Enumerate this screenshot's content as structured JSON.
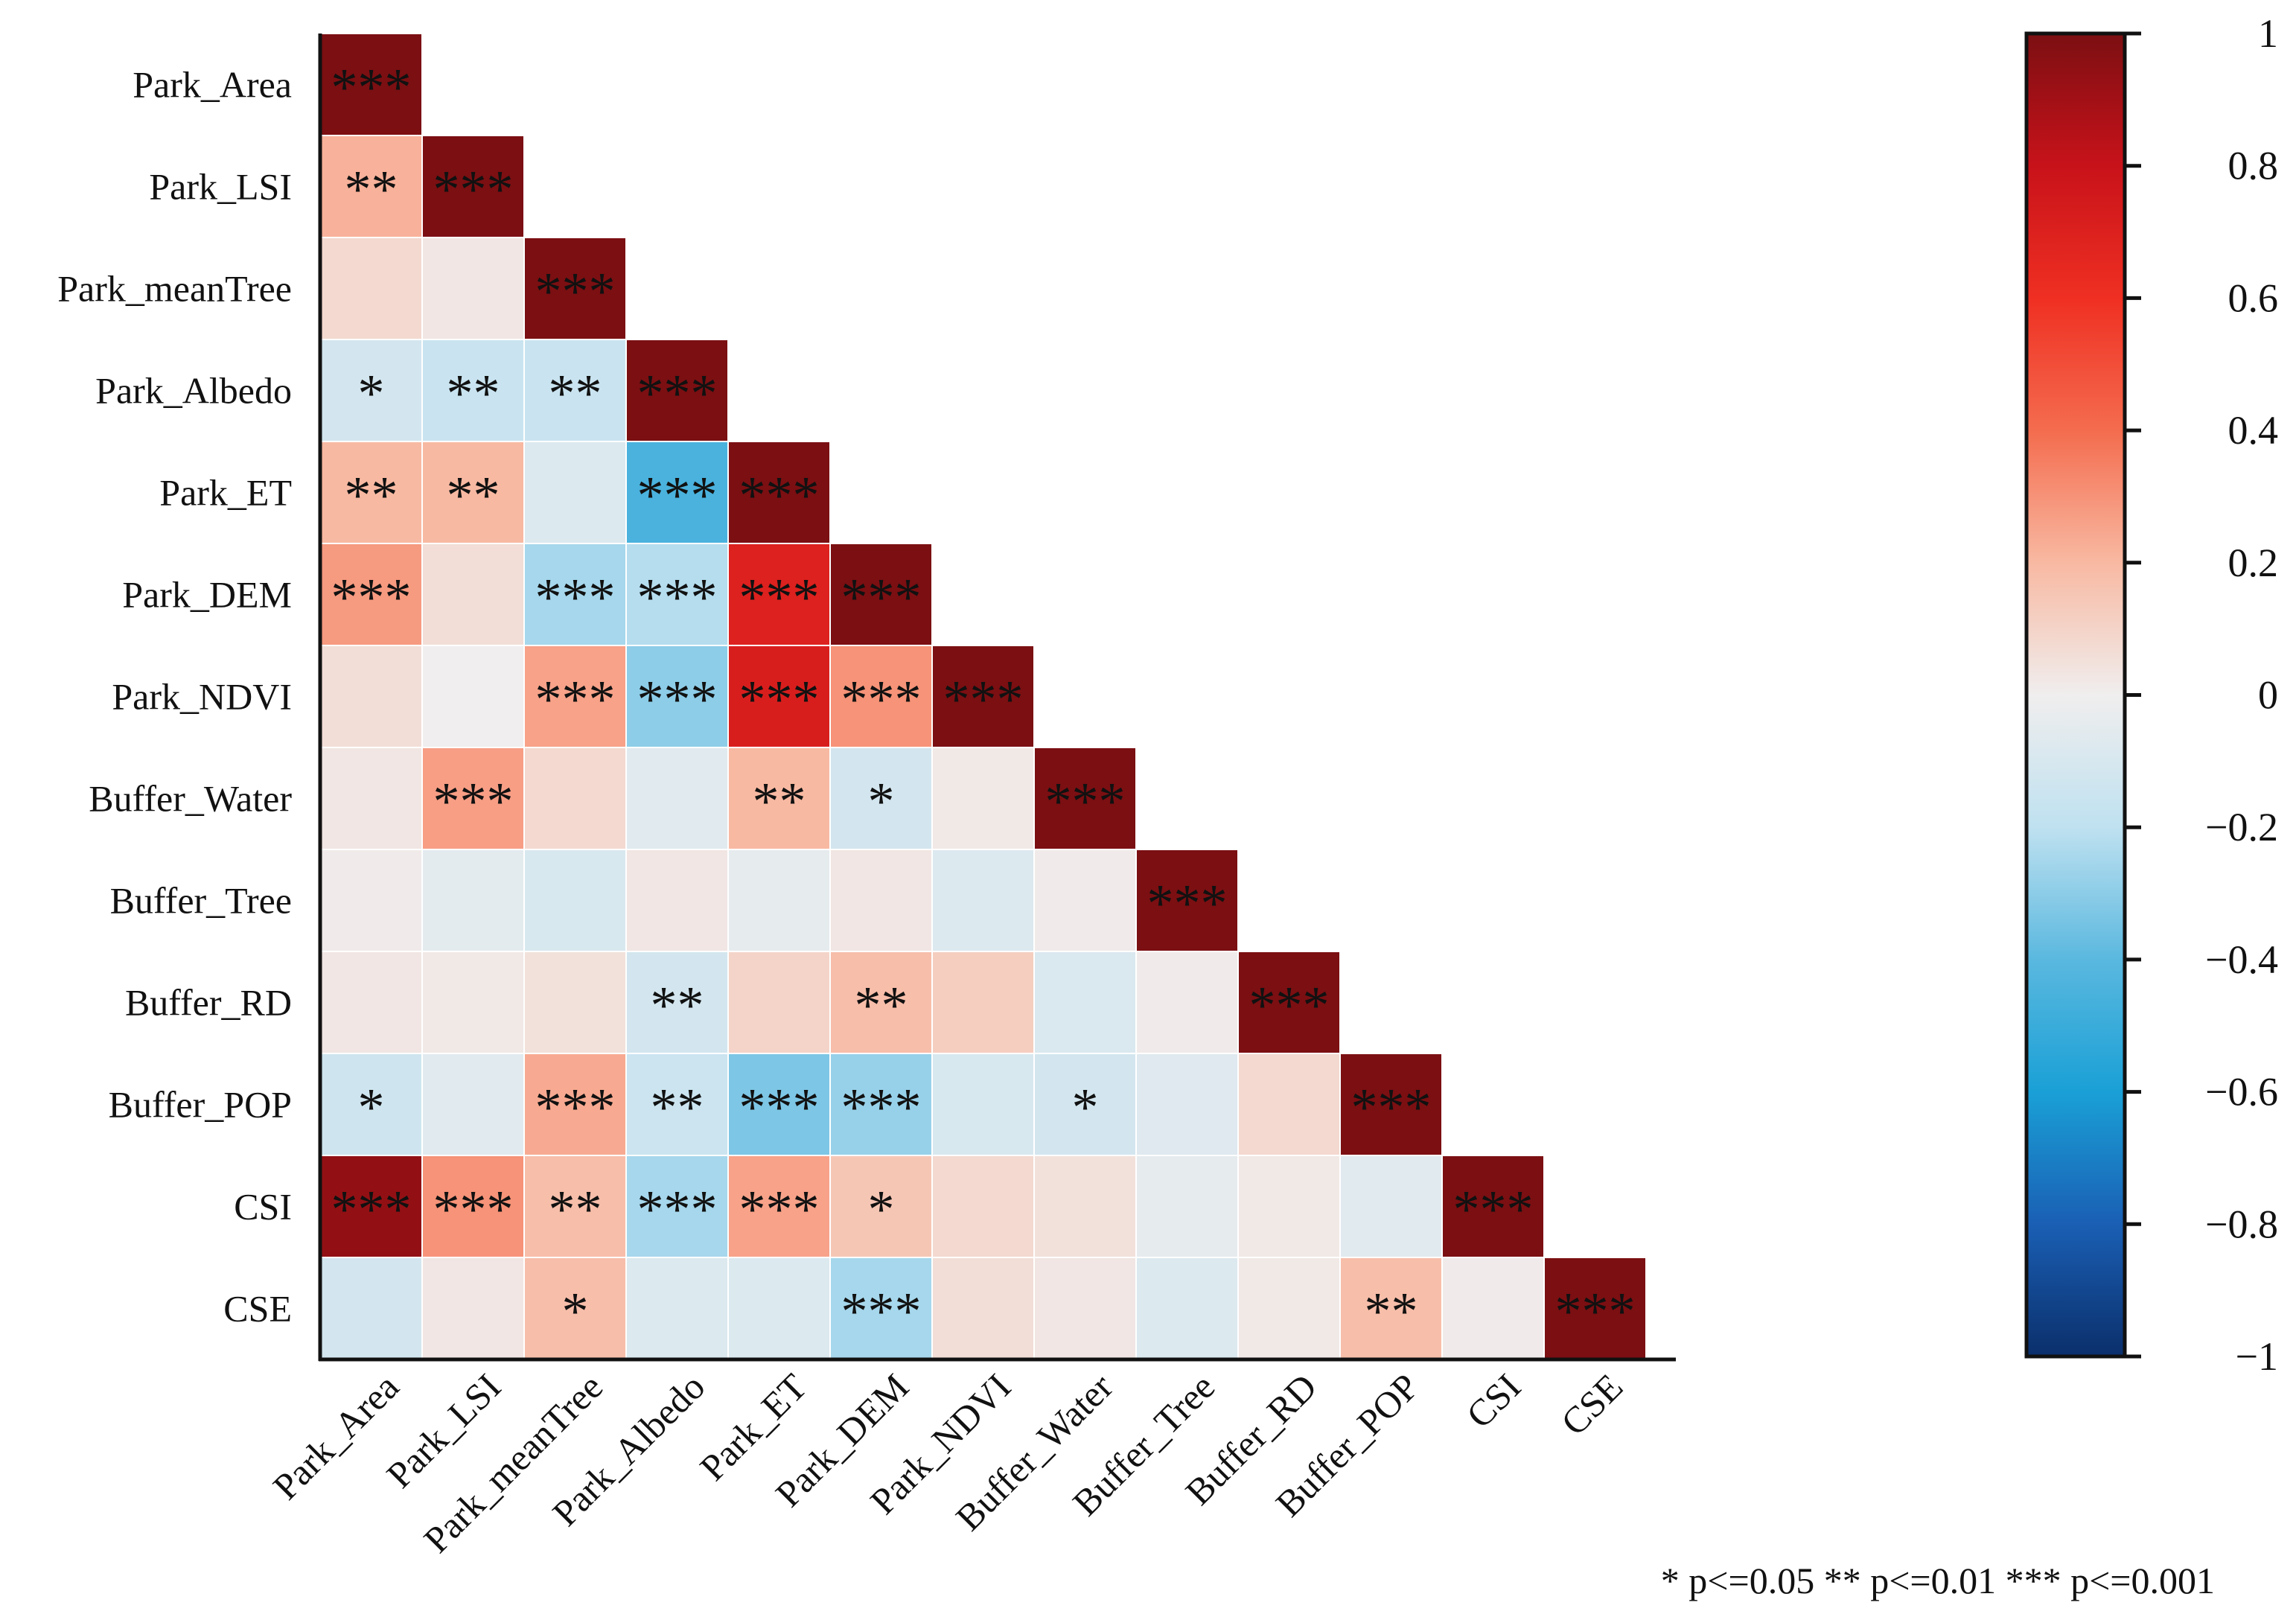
{
  "chart_data": {
    "type": "heatmap",
    "variables": [
      "Park_Area",
      "Park_LSI",
      "Park_meanTree",
      "Park_Albedo",
      "Park_ET",
      "Park_DEM",
      "Park_NDVI",
      "Buffer_Water",
      "Buffer_Tree",
      "Buffer_RD",
      "Buffer_POP",
      "CSI",
      "CSE"
    ],
    "lower_triangle": true,
    "values": [
      [
        1
      ],
      [
        0.22,
        1
      ],
      [
        0.08,
        0.03,
        1
      ],
      [
        -0.12,
        -0.16,
        -0.16,
        1
      ],
      [
        0.2,
        0.2,
        -0.08,
        -0.45,
        1
      ],
      [
        0.28,
        0.06,
        -0.25,
        -0.22,
        0.7,
        1
      ],
      [
        0.06,
        0.0,
        0.26,
        -0.3,
        0.72,
        0.3,
        1
      ],
      [
        0.03,
        0.27,
        0.08,
        -0.06,
        0.2,
        -0.12,
        0.02,
        1
      ],
      [
        0.01,
        -0.05,
        -0.1,
        0.03,
        -0.04,
        0.03,
        -0.08,
        0.01,
        1
      ],
      [
        0.03,
        0.02,
        0.05,
        -0.12,
        0.1,
        0.18,
        0.12,
        -0.09,
        0.01,
        1
      ],
      [
        -0.14,
        -0.06,
        0.24,
        -0.15,
        -0.33,
        -0.28,
        -0.1,
        -0.12,
        -0.07,
        0.08,
        1
      ],
      [
        0.94,
        0.3,
        0.18,
        -0.25,
        0.26,
        0.15,
        0.08,
        0.05,
        -0.04,
        0.02,
        -0.06,
        1
      ],
      [
        -0.12,
        0.03,
        0.18,
        -0.08,
        -0.08,
        -0.25,
        0.06,
        0.03,
        -0.08,
        0.02,
        0.18,
        0.01,
        1
      ]
    ],
    "stars": [
      [
        "***"
      ],
      [
        "**",
        "***"
      ],
      [
        "",
        "",
        "***"
      ],
      [
        "*",
        "**",
        "**",
        "***"
      ],
      [
        "**",
        "**",
        "",
        "***",
        "***"
      ],
      [
        "***",
        "",
        "***",
        "***",
        "***",
        "***"
      ],
      [
        "",
        "",
        "***",
        "***",
        "***",
        "***",
        "***"
      ],
      [
        "",
        "***",
        "",
        "",
        "**",
        "*",
        "",
        "***"
      ],
      [
        "",
        "",
        "",
        "",
        "",
        "",
        "",
        "",
        "***"
      ],
      [
        "",
        "",
        "",
        "**",
        "",
        "**",
        "",
        "",
        "",
        "***"
      ],
      [
        "*",
        "",
        "***",
        "**",
        "***",
        "***",
        "",
        "*",
        "",
        "",
        "***"
      ],
      [
        "***",
        "***",
        "**",
        "***",
        "***",
        "*",
        "",
        "",
        "",
        "",
        "",
        "***"
      ],
      [
        "",
        "",
        "*",
        "",
        "",
        "***",
        "",
        "",
        "",
        "",
        "**",
        "",
        "***"
      ]
    ],
    "colorbar": {
      "min": -1,
      "max": 1,
      "ticks": [
        {
          "value": 1,
          "label": "1"
        },
        {
          "value": 0.8,
          "label": "0.8"
        },
        {
          "value": 0.6,
          "label": "0.6"
        },
        {
          "value": 0.4,
          "label": "0.4"
        },
        {
          "value": 0.2,
          "label": "0.2"
        },
        {
          "value": 0,
          "label": "0"
        },
        {
          "value": -0.2,
          "label": "−0.2"
        },
        {
          "value": -0.4,
          "label": "−0.4"
        },
        {
          "value": -0.6,
          "label": "−0.6"
        },
        {
          "value": -0.8,
          "label": "−0.8"
        },
        {
          "value": -1,
          "label": "−1"
        }
      ],
      "colors": {
        "neg1": "#0b2f6b",
        "neg08": "#1a5fb4",
        "neg06": "#1aa0d6",
        "neg04": "#5ab8df",
        "neg02": "#bfe1f0",
        "zero": "#f0eeee",
        "pos02": "#f8b9a2",
        "pos04": "#f46c4e",
        "pos06": "#ef2f22",
        "pos08": "#c8121a",
        "pos1": "#7b0f12"
      }
    },
    "significance_legend": "* p<=0.05   ** p<=0.01   *** p<=0.001"
  }
}
